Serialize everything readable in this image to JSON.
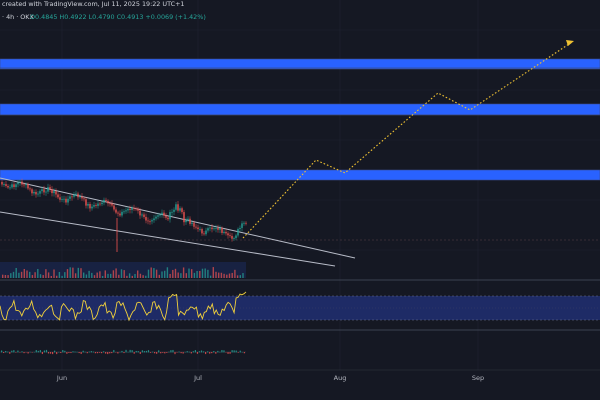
{
  "header": {
    "source_text": "created with TradingView.com, Jul 11, 2025 19:22 UTC+1",
    "symbol_line": "· 4h · OKX",
    "ohlc": "O0.4845  H0.4922  L0.4790  C0.4913  +0.0069 (+1.42%)"
  },
  "chart_data": {
    "type": "line",
    "x_tick_labels": [
      "Jun",
      "Jul",
      "Aug",
      "Sep"
    ],
    "zones": [
      {
        "role": "resistance-zone"
      },
      {
        "role": "resistance-zone"
      },
      {
        "role": "resistance-zone"
      }
    ],
    "projection_path": "zigzag-up",
    "grid": true,
    "legend": "none"
  },
  "colors": {
    "background": "#151823",
    "zone_fill": "#2962ff",
    "projection": "#f0c232",
    "price_line": "#e8e8e8",
    "channel": "#b8bcc8",
    "oscillator_band": "#1e2b66",
    "bull": "#26a69a",
    "bear": "#ef5350"
  }
}
